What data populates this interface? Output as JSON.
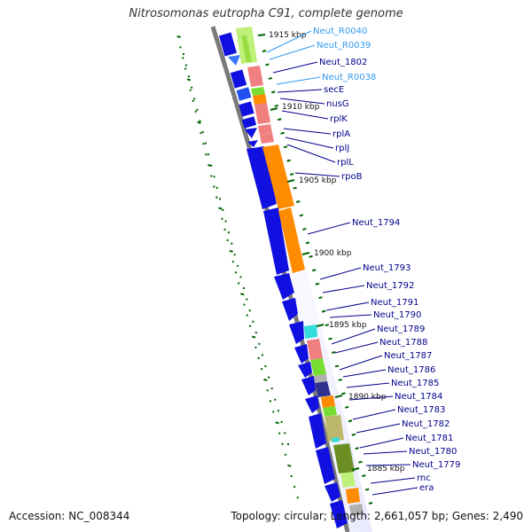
{
  "title": "Nitrosomonas eutropha C91, complete genome",
  "footer": {
    "accession": "Accession: NC_008344",
    "summary": "Topology: circular; Length: 2,661,057 bp; Genes: 2,490"
  },
  "colors": {
    "backbone": "#7a7a7a",
    "blue_gene": "#1010e0",
    "orange_gene": "#ff8c00",
    "salmon_gene": "#f08080",
    "green_gene": "#77dd33",
    "lightgreen_gene": "#bff07a",
    "cyan_gene": "#33dddd",
    "olive_gene": "#6b8e23",
    "khaki_gene": "#bdb76b",
    "gray_gene": "#b0b0b0",
    "navy_gene": "#303090",
    "label_dark": "#00008b",
    "label_light": "#3399ee",
    "tick": "#006400"
  },
  "kbp_ticks": [
    "1915 kbp",
    "1910 kbp",
    "1905 kbp",
    "1900 kbp",
    "1895 kbp",
    "1890 kbp",
    "1885 kbp"
  ],
  "gene_labels": [
    {
      "name": "Neut_R0040",
      "style": "light"
    },
    {
      "name": "Neut_R0039",
      "style": "light"
    },
    {
      "name": "Neut_1802",
      "style": "dark"
    },
    {
      "name": "Neut_R0038",
      "style": "light"
    },
    {
      "name": "secE",
      "style": "dark"
    },
    {
      "name": "nusG",
      "style": "dark"
    },
    {
      "name": "rplK",
      "style": "dark"
    },
    {
      "name": "rplA",
      "style": "dark"
    },
    {
      "name": "rplJ",
      "style": "dark"
    },
    {
      "name": "rplL",
      "style": "dark"
    },
    {
      "name": "rpoB",
      "style": "dark"
    },
    {
      "name": "Neut_1794",
      "style": "dark"
    },
    {
      "name": "Neut_1793",
      "style": "dark"
    },
    {
      "name": "Neut_1792",
      "style": "dark"
    },
    {
      "name": "Neut_1791",
      "style": "dark"
    },
    {
      "name": "Neut_1790",
      "style": "dark"
    },
    {
      "name": "Neut_1789",
      "style": "dark"
    },
    {
      "name": "Neut_1788",
      "style": "dark"
    },
    {
      "name": "Neut_1787",
      "style": "dark"
    },
    {
      "name": "Neut_1786",
      "style": "dark"
    },
    {
      "name": "Neut_1785",
      "style": "dark"
    },
    {
      "name": "Neut_1784",
      "style": "dark"
    },
    {
      "name": "Neut_1783",
      "style": "dark"
    },
    {
      "name": "Neut_1782",
      "style": "dark"
    },
    {
      "name": "Neut_1781",
      "style": "dark"
    },
    {
      "name": "Neut_1780",
      "style": "dark"
    },
    {
      "name": "Neut_1779",
      "style": "dark"
    },
    {
      "name": "rnc",
      "style": "dark"
    },
    {
      "name": "era",
      "style": "dark"
    }
  ]
}
